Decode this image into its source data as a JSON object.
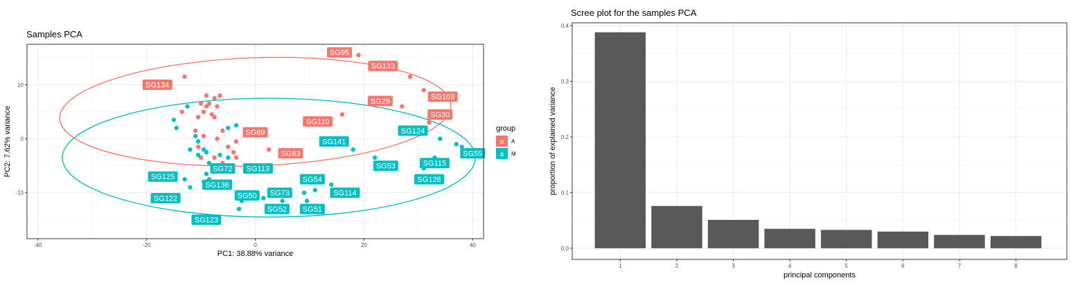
{
  "chart_data": [
    {
      "type": "scatter",
      "title": "Samples PCA",
      "xlabel": "PC1: 38.88% variance",
      "ylabel": "PC2: 7.62% variance",
      "xlim": [
        -42,
        42
      ],
      "ylim": [
        -18.5,
        17.5
      ],
      "xticks": [
        -40,
        -20,
        0,
        20,
        40
      ],
      "yticks": [
        10,
        0,
        -10
      ],
      "grid": true,
      "legend": {
        "title": "group",
        "placement": "right",
        "entries": [
          {
            "key": "a",
            "label": "A",
            "color": "#F8766D"
          },
          {
            "key": "a",
            "label": "M",
            "color": "#00BFC4"
          }
        ]
      },
      "series": [
        {
          "name": "A",
          "color": "#F8766D",
          "points": [
            [
              -13.0,
              11.5
            ],
            [
              -13.5,
              5.0
            ],
            [
              -9.0,
              8.0
            ],
            [
              -7.5,
              7.5
            ],
            [
              -6.5,
              8.0
            ],
            [
              -10.0,
              6.5
            ],
            [
              -9.0,
              6.0
            ],
            [
              -8.5,
              6.5
            ],
            [
              -7.0,
              6.0
            ],
            [
              -9.5,
              5.0
            ],
            [
              -8.0,
              4.5
            ],
            [
              -10.5,
              4.0
            ],
            [
              -7.5,
              4.0
            ],
            [
              -11.0,
              1.5
            ],
            [
              -9.5,
              0.5
            ],
            [
              -6.0,
              1.5
            ],
            [
              -7.0,
              0.0
            ],
            [
              -3.5,
              -0.5
            ],
            [
              -5.0,
              -1.5
            ],
            [
              -10.5,
              -1.5
            ],
            [
              -4.0,
              -2.5
            ],
            [
              -7.5,
              -3.5
            ],
            [
              -3.5,
              -3.5
            ],
            [
              -10.0,
              -3.5
            ],
            [
              -6.0,
              -4.5
            ],
            [
              19.0,
              15.5
            ],
            [
              25.0,
              13.0
            ],
            [
              28.5,
              11.5
            ],
            [
              31.0,
              9.0
            ],
            [
              27.0,
              6.0
            ],
            [
              16.0,
              4.5
            ],
            [
              32.0,
              3.0
            ],
            [
              2.5,
              -2.0
            ]
          ]
        },
        {
          "name": "M",
          "color": "#00BFC4",
          "points": [
            [
              -12.5,
              6.0
            ],
            [
              -15.0,
              3.5
            ],
            [
              -14.5,
              2.0
            ],
            [
              -11.0,
              0.5
            ],
            [
              -10.5,
              -0.5
            ],
            [
              -12.0,
              -2.0
            ],
            [
              -9.5,
              -2.0
            ],
            [
              -9.0,
              -2.5
            ],
            [
              -10.5,
              -3.0
            ],
            [
              -8.5,
              -4.5
            ],
            [
              -5.0,
              -3.5
            ],
            [
              -3.5,
              2.5
            ],
            [
              -5.0,
              2.0
            ],
            [
              -6.5,
              -3.0
            ],
            [
              -9.0,
              -6.5
            ],
            [
              -8.5,
              -7.5
            ],
            [
              -12.0,
              -9.0
            ],
            [
              -13.0,
              -7.5
            ],
            [
              -9.5,
              -8.0
            ],
            [
              -3.0,
              -13.0
            ],
            [
              -2.5,
              -11.5
            ],
            [
              -1.5,
              -10.0
            ],
            [
              1.5,
              -11.0
            ],
            [
              3.0,
              -10.0
            ],
            [
              5.0,
              -11.5
            ],
            [
              9.0,
              -10.0
            ],
            [
              11.0,
              -9.5
            ],
            [
              9.5,
              -11.5
            ],
            [
              14.0,
              -8.5
            ],
            [
              17.0,
              -10.0
            ],
            [
              18.0,
              -2.0
            ],
            [
              22.0,
              -3.5
            ],
            [
              31.0,
              -5.5
            ],
            [
              33.0,
              -3.5
            ],
            [
              34.0,
              0.0
            ],
            [
              37.0,
              -1.0
            ],
            [
              38.0,
              -1.5
            ],
            [
              31.0,
              -4.5
            ]
          ]
        }
      ],
      "labels": [
        {
          "text": "SG95",
          "x": 15.5,
          "y": 16.0,
          "group": "A"
        },
        {
          "text": "SG133",
          "x": 23.5,
          "y": 13.5,
          "group": "A"
        },
        {
          "text": "SG134",
          "x": -18.0,
          "y": 10.0,
          "group": "A"
        },
        {
          "text": "SG29",
          "x": 23.0,
          "y": 7.0,
          "group": "A"
        },
        {
          "text": "SG103",
          "x": 34.5,
          "y": 7.8,
          "group": "A"
        },
        {
          "text": "SG30",
          "x": 34.0,
          "y": 4.5,
          "group": "A"
        },
        {
          "text": "SG110",
          "x": 11.5,
          "y": 3.2,
          "group": "A"
        },
        {
          "text": "SG69",
          "x": 0.0,
          "y": 1.2,
          "group": "A"
        },
        {
          "text": "SG83",
          "x": 6.5,
          "y": -2.7,
          "group": "A"
        },
        {
          "text": "SG124",
          "x": 29.0,
          "y": 1.5,
          "group": "M"
        },
        {
          "text": "SG141",
          "x": 14.5,
          "y": -0.5,
          "group": "M"
        },
        {
          "text": "SG55",
          "x": 40.0,
          "y": -2.7,
          "group": "M"
        },
        {
          "text": "SG53",
          "x": 24.0,
          "y": -5.0,
          "group": "M"
        },
        {
          "text": "SG115",
          "x": 33.0,
          "y": -4.5,
          "group": "M"
        },
        {
          "text": "SG126",
          "x": 32.0,
          "y": -7.5,
          "group": "M"
        },
        {
          "text": "SG72",
          "x": -6.0,
          "y": -5.5,
          "group": "M"
        },
        {
          "text": "SG113",
          "x": 0.5,
          "y": -5.5,
          "group": "M"
        },
        {
          "text": "SG125",
          "x": -17.0,
          "y": -7.0,
          "group": "M"
        },
        {
          "text": "SG136",
          "x": -7.0,
          "y": -8.5,
          "group": "M"
        },
        {
          "text": "SG54",
          "x": 10.5,
          "y": -7.5,
          "group": "M"
        },
        {
          "text": "SG50",
          "x": -1.5,
          "y": -10.5,
          "group": "M"
        },
        {
          "text": "SG73",
          "x": 4.5,
          "y": -10.0,
          "group": "M"
        },
        {
          "text": "SG114",
          "x": 16.5,
          "y": -10.0,
          "group": "M"
        },
        {
          "text": "SG122",
          "x": -16.5,
          "y": -11.0,
          "group": "M"
        },
        {
          "text": "SG52",
          "x": 4.0,
          "y": -13.0,
          "group": "M"
        },
        {
          "text": "SG51",
          "x": 10.5,
          "y": -13.0,
          "group": "M"
        },
        {
          "text": "SG123",
          "x": -9.0,
          "y": -15.0,
          "group": "M"
        }
      ],
      "ellipses": [
        {
          "group": "A",
          "color": "#F8766D",
          "center": [
            0.0,
            5.0
          ],
          "rx": 36.0,
          "ry": 10.0,
          "rotation_deg": -2
        },
        {
          "group": "M",
          "color": "#00BFC4",
          "center": [
            2.5,
            -3.5
          ],
          "rx": 38.0,
          "ry": 11.0,
          "rotation_deg": 0
        }
      ]
    },
    {
      "type": "bar",
      "title": "Scree plot for the samples PCA",
      "xlabel": "principal components",
      "ylabel": "proportion of explained variance",
      "categories": [
        "1",
        "2",
        "3",
        "4",
        "5",
        "6",
        "7",
        "8"
      ],
      "values": [
        0.388,
        0.076,
        0.051,
        0.035,
        0.033,
        0.03,
        0.024,
        0.022
      ],
      "ylim": [
        -0.02,
        0.405
      ],
      "yticks": [
        "0.0",
        "0.1",
        "0.2",
        "0.3",
        "0.4"
      ],
      "bar_color": "#595959",
      "grid": true
    }
  ]
}
